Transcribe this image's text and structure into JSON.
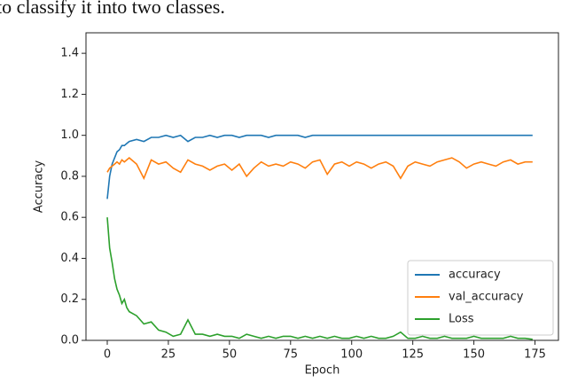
{
  "caption": "to classify it into two classes.",
  "chart_data": {
    "type": "line",
    "xlabel": "Epoch",
    "ylabel": "Accuracy",
    "x": [
      0,
      1,
      2,
      3,
      4,
      5,
      6,
      7,
      8,
      9,
      12,
      15,
      18,
      21,
      24,
      27,
      30,
      33,
      36,
      39,
      42,
      45,
      48,
      51,
      54,
      57,
      60,
      63,
      66,
      69,
      72,
      75,
      78,
      81,
      84,
      87,
      90,
      93,
      96,
      99,
      102,
      105,
      108,
      111,
      114,
      117,
      120,
      123,
      126,
      129,
      132,
      135,
      138,
      141,
      144,
      147,
      150,
      153,
      156,
      159,
      162,
      165,
      168,
      171,
      174
    ],
    "series": [
      {
        "name": "accuracy",
        "color": "#1f77b4",
        "values": [
          0.69,
          0.8,
          0.86,
          0.89,
          0.92,
          0.93,
          0.95,
          0.95,
          0.96,
          0.97,
          0.98,
          0.97,
          0.99,
          0.99,
          1.0,
          0.99,
          1.0,
          0.97,
          0.99,
          0.99,
          1.0,
          0.99,
          1.0,
          1.0,
          0.99,
          1.0,
          1.0,
          1.0,
          0.99,
          1.0,
          1.0,
          1.0,
          1.0,
          0.99,
          1.0,
          1.0,
          1.0,
          1.0,
          1.0,
          1.0,
          1.0,
          1.0,
          1.0,
          1.0,
          1.0,
          1.0,
          1.0,
          1.0,
          1.0,
          1.0,
          1.0,
          1.0,
          1.0,
          1.0,
          1.0,
          1.0,
          1.0,
          1.0,
          1.0,
          1.0,
          1.0,
          1.0,
          1.0,
          1.0,
          1.0
        ]
      },
      {
        "name": "val_accuracy",
        "color": "#ff7f0e",
        "values": [
          0.82,
          0.84,
          0.85,
          0.86,
          0.87,
          0.86,
          0.88,
          0.87,
          0.88,
          0.89,
          0.86,
          0.79,
          0.88,
          0.86,
          0.87,
          0.84,
          0.82,
          0.88,
          0.86,
          0.85,
          0.83,
          0.85,
          0.86,
          0.83,
          0.86,
          0.8,
          0.84,
          0.87,
          0.85,
          0.86,
          0.85,
          0.87,
          0.86,
          0.84,
          0.87,
          0.88,
          0.81,
          0.86,
          0.87,
          0.85,
          0.87,
          0.86,
          0.84,
          0.86,
          0.87,
          0.85,
          0.79,
          0.85,
          0.87,
          0.86,
          0.85,
          0.87,
          0.88,
          0.89,
          0.87,
          0.84,
          0.86,
          0.87,
          0.86,
          0.85,
          0.87,
          0.88,
          0.86,
          0.87,
          0.87
        ]
      },
      {
        "name": "Loss",
        "color": "#2ca02c",
        "values": [
          0.6,
          0.45,
          0.38,
          0.3,
          0.25,
          0.22,
          0.18,
          0.2,
          0.16,
          0.14,
          0.12,
          0.08,
          0.09,
          0.05,
          0.04,
          0.02,
          0.03,
          0.1,
          0.03,
          0.03,
          0.02,
          0.03,
          0.02,
          0.02,
          0.01,
          0.03,
          0.02,
          0.01,
          0.02,
          0.01,
          0.02,
          0.02,
          0.01,
          0.02,
          0.01,
          0.02,
          0.01,
          0.02,
          0.01,
          0.01,
          0.02,
          0.01,
          0.02,
          0.01,
          0.01,
          0.02,
          0.04,
          0.01,
          0.01,
          0.02,
          0.01,
          0.01,
          0.02,
          0.01,
          0.01,
          0.01,
          0.02,
          0.01,
          0.01,
          0.01,
          0.01,
          0.02,
          0.01,
          0.01,
          0.005
        ]
      }
    ],
    "xlim": [
      -8.7,
      184.6
    ],
    "xticks": [
      0,
      25,
      50,
      75,
      100,
      125,
      150,
      175
    ],
    "ylim": [
      0,
      1.5
    ],
    "yticks": [
      {
        "value": 0,
        "label": "0.0"
      },
      0.2,
      0.4,
      0.6,
      0.8,
      {
        "value": 1,
        "label": "1.0"
      },
      1.2,
      1.4
    ],
    "legend": "lower right"
  }
}
